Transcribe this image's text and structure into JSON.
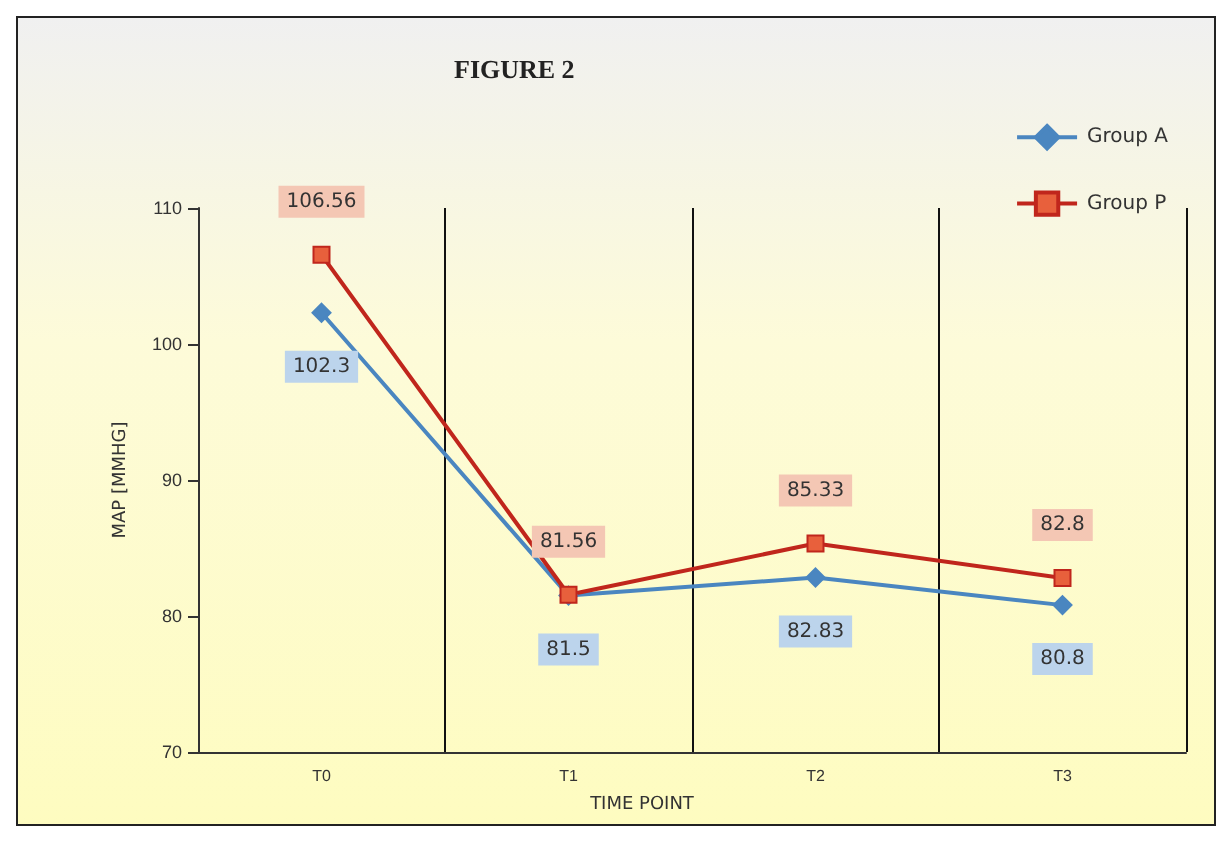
{
  "chart_data": {
    "type": "line",
    "title": "FIGURE 2",
    "xlabel": "TIME POINT",
    "ylabel": "MAP [MMHG]",
    "categories": [
      "T0",
      "T1",
      "T2",
      "T3"
    ],
    "series": [
      {
        "name": "Group A",
        "color": "#4a86c0",
        "values": [
          102.3,
          81.5,
          82.83,
          80.8
        ],
        "marker": "diamond"
      },
      {
        "name": "Group P",
        "color": "#c0261c",
        "values": [
          106.56,
          81.56,
          85.33,
          82.8
        ],
        "marker": "square"
      }
    ],
    "ylim": [
      70,
      110
    ],
    "yticks": [
      70,
      80,
      90,
      100,
      110
    ],
    "grid": "x",
    "legend": "top right",
    "data_labels": true
  }
}
